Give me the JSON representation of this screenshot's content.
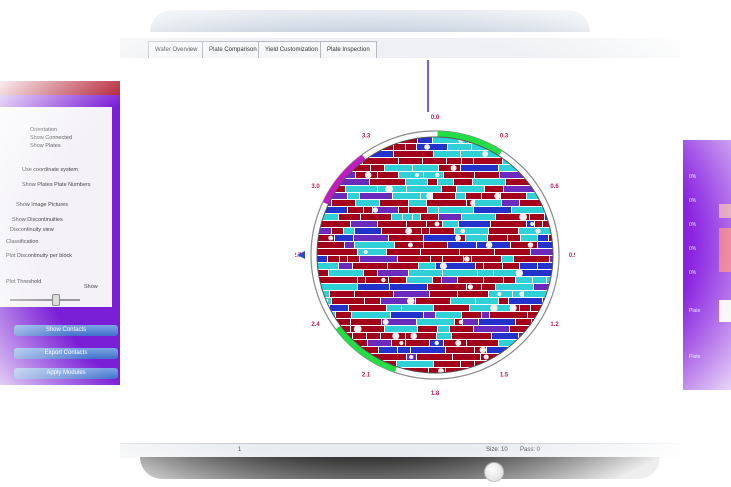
{
  "tabs": [
    {
      "label": "Wafer Overview"
    },
    {
      "label": "Plate Comparison"
    },
    {
      "label": "Yield Customization"
    },
    {
      "label": "Plate Inspection"
    }
  ],
  "left_panel": {
    "options": [
      {
        "label": "Orientation"
      },
      {
        "label": "Show Connected"
      },
      {
        "label": "Show Plates"
      },
      {
        "label": "Use coordinate system"
      },
      {
        "label": "Show Plates   Plate Numbers"
      },
      {
        "label": "Show Image Pictures"
      },
      {
        "label": "Show Discontinuities"
      },
      {
        "label": "Discontinuity view"
      },
      {
        "label": "Classification"
      },
      {
        "label": "Plot Discontinuity per block"
      }
    ],
    "threshold_label": "Plot Threshold",
    "show_label": "Show",
    "slider_value": 0.6,
    "buttons": [
      {
        "label": "Show Contacts"
      },
      {
        "label": "Export Contacts"
      },
      {
        "label": "Apply Modules"
      }
    ]
  },
  "right_panel": {
    "labels": [
      "0%",
      "0%",
      "0%",
      "0%",
      "0%",
      "Plate",
      "Plate"
    ]
  },
  "wafer": {
    "labels": [
      "0.0",
      "0.3",
      "0.6",
      "0.9",
      "1.2",
      "1.5",
      "1.8",
      "2.1",
      "2.4",
      "2.7",
      "3.0",
      "3.3"
    ],
    "colors": {
      "ring": "#7a7a7a",
      "red": "#a3001b",
      "cyan": "#2fd0d6",
      "purple": "#6a2bbd",
      "blue": "#2233cc",
      "green": "#22dd44",
      "magenta": "#c21bbf",
      "label": "#c2185b"
    }
  },
  "status": {
    "page": "1",
    "size_label": "Size: 10",
    "pass_label": "Pass: 0"
  }
}
